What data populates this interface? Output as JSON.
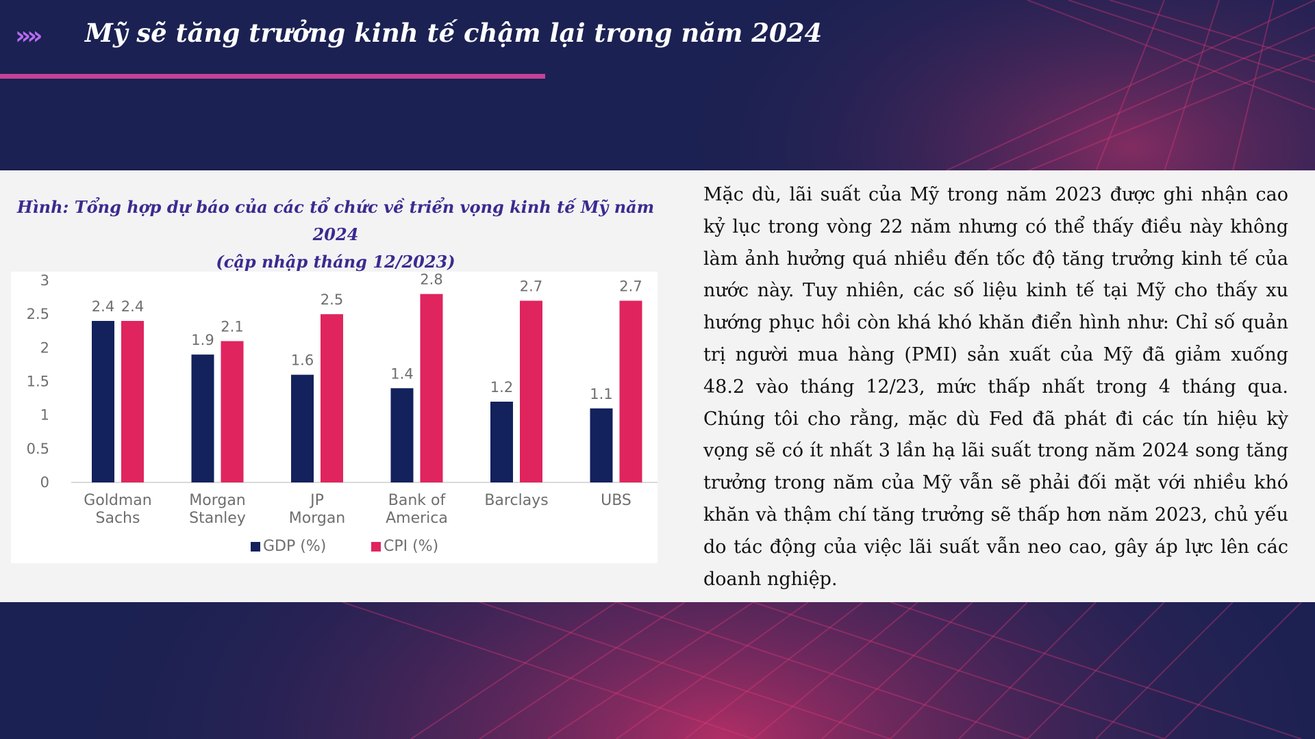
{
  "header": {
    "chevrons": "»»",
    "title": "Mỹ sẽ tăng trưởng kinh tế chậm lại trong năm 2024"
  },
  "figure": {
    "caption_line1": "Hình: Tổng hợp dự báo của các tổ chức về triển vọng kinh tế Mỹ năm 2024",
    "caption_line2": "(cập nhập tháng 12/2023)"
  },
  "body": {
    "paragraph": "Mặc dù, lãi suất của Mỹ trong năm 2023 được ghi nhận cao kỷ lục trong vòng 22 năm nhưng có thể thấy điều này không làm ảnh hưởng quá nhiều đến tốc độ tăng trưởng kinh tế của nước này. Tuy nhiên, các số liệu kinh tế tại Mỹ cho thấy xu hướng phục hồi còn khá khó khăn điển hình như: Chỉ số quản trị người mua hàng (PMI) sản xuất của Mỹ đã giảm xuống 48.2 vào tháng 12/23, mức thấp nhất trong 4 tháng qua. Chúng tôi cho rằng, mặc dù Fed đã phát đi các tín hiệu kỳ vọng sẽ có ít nhất 3 lần hạ lãi suất trong năm 2024 song tăng trưởng trong năm của Mỹ vẫn sẽ phải đối mặt với nhiều khó khăn và thậm chí tăng trưởng sẽ thấp hơn năm 2023, chủ yếu do tác động của việc lãi suất vẫn neo cao, gây áp lực lên các doanh nghiệp."
  },
  "colors": {
    "background": "#1b2152",
    "accent_rule": "#c54298",
    "chevron": "#b66cf0",
    "caption": "#3b2a8f",
    "gdp": "#13215c",
    "cpi": "#e0245e"
  },
  "chart_data": {
    "type": "bar",
    "categories": [
      [
        "Goldman",
        "Sachs"
      ],
      [
        "Morgan",
        "Stanley"
      ],
      [
        "JP",
        "Morgan"
      ],
      [
        "Bank of",
        "America"
      ],
      [
        "Barclays"
      ],
      [
        "UBS"
      ]
    ],
    "series": [
      {
        "name": "GDP (%)",
        "values": [
          2.4,
          1.9,
          1.6,
          1.4,
          1.2,
          1.1
        ],
        "color": "#13215c"
      },
      {
        "name": "CPI (%)",
        "values": [
          2.4,
          2.1,
          2.5,
          2.8,
          2.7,
          2.7
        ],
        "color": "#e0245e"
      }
    ],
    "value_labels": [
      [
        "2.4",
        "1.9",
        "1.6",
        "1.4",
        "1.2",
        "1.1"
      ],
      [
        "2.4",
        "2.1",
        "2.5",
        "2.8",
        "2.7",
        "2.7"
      ]
    ],
    "yticks": [
      "0",
      "0.5",
      "1",
      "1.5",
      "2",
      "2.5",
      "3"
    ],
    "ylim": [
      0,
      3
    ],
    "legend_position": "bottom",
    "grid": false
  }
}
